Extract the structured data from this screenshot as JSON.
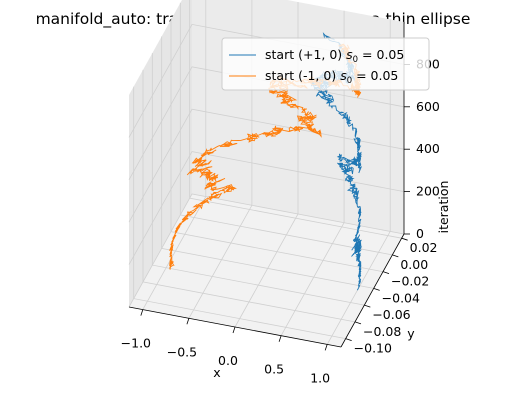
{
  "chart_data": {
    "type": "line",
    "projection": "3d",
    "title": "manifold_auto: traceplots of two chains on a thin ellipse",
    "xlabel": "x",
    "ylabel": "y",
    "zlabel": "iteration",
    "xlim": [
      -1.15,
      1.15
    ],
    "ylim": [
      -0.11,
      0.025
    ],
    "zlim": [
      0,
      1000
    ],
    "xticks": [
      "−1.0",
      "−0.5",
      "0.0",
      "0.5",
      "1.0"
    ],
    "yticks": [
      "0.02",
      "0.00",
      "−0.02",
      "−0.04",
      "−0.06",
      "−0.08",
      "−0.10"
    ],
    "zticks": [
      "0",
      "200",
      "400",
      "600",
      "800"
    ],
    "grid": true,
    "legend_position": "upper right",
    "series": [
      {
        "name": "start (+1, 0)  s0 = 0.05",
        "legend_label": "start (+1, 0)  ",
        "legend_math": "s",
        "legend_sub": "0",
        "legend_tail": " = 0.05",
        "color": "#1f77b4",
        "iterations": 1000,
        "start": [
          1.0,
          0.0
        ],
        "final_theta_fraction": 0.35
      },
      {
        "name": "start (-1, 0)  s0 = 0.05",
        "legend_label": "start (-1, 0)  ",
        "legend_math": "s",
        "legend_sub": "0",
        "legend_tail": " = 0.05",
        "color": "#ff7f0e",
        "iterations": 1000,
        "start": [
          -1.0,
          0.0
        ],
        "final_theta_fraction": -0.85
      }
    ]
  }
}
